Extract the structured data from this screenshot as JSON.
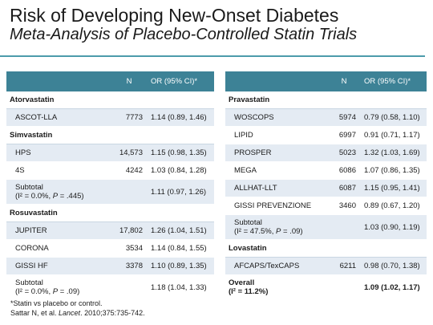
{
  "title": "Risk of Developing New-Onset Diabetes",
  "subtitle": "Meta-Analysis of Placebo-Controlled Statin Trials",
  "header": {
    "n": "N",
    "or": "OR (95% CI)*"
  },
  "left": [
    {
      "kind": "group",
      "label": "Atorvastatin"
    },
    {
      "kind": "trial",
      "name": "ASCOT-LLA",
      "n": "7773",
      "or": "1.14 (0.89, 1.46)",
      "shade": true
    },
    {
      "kind": "group",
      "label": "Simvastatin"
    },
    {
      "kind": "trial",
      "name": "HPS",
      "n": "14,573",
      "or": "1.15 (0.98, 1.35)",
      "shade": true
    },
    {
      "kind": "trial",
      "name": "4S",
      "n": "4242",
      "or": "1.03 (0.84, 1.28)",
      "shade": false
    },
    {
      "kind": "subtotal",
      "line1": "Subtotal",
      "line2": "(I² = 0.0%, P = .445)",
      "or": "1.11 (0.97, 1.26)",
      "shade": true
    },
    {
      "kind": "group",
      "label": "Rosuvastatin"
    },
    {
      "kind": "trial",
      "name": "JUPITER",
      "n": "17,802",
      "or": "1.26 (1.04, 1.51)",
      "shade": true
    },
    {
      "kind": "trial",
      "name": "CORONA",
      "n": "3534",
      "or": "1.14 (0.84, 1.55)",
      "shade": false
    },
    {
      "kind": "trial",
      "name": "GISSI HF",
      "n": "3378",
      "or": "1.10 (0.89, 1.35)",
      "shade": true
    },
    {
      "kind": "subtotal",
      "line1": "Subtotal",
      "line2": "(I² = 0.0%, P = .09)",
      "or": "1.18 (1.04, 1.33)",
      "shade": false
    }
  ],
  "right": [
    {
      "kind": "group",
      "label": "Pravastatin"
    },
    {
      "kind": "trial",
      "name": "WOSCOPS",
      "n": "5974",
      "or": "0.79 (0.58, 1.10)",
      "shade": true
    },
    {
      "kind": "trial",
      "name": "LIPID",
      "n": "6997",
      "or": "0.91 (0.71, 1.17)",
      "shade": false
    },
    {
      "kind": "trial",
      "name": "PROSPER",
      "n": "5023",
      "or": "1.32 (1.03, 1.69)",
      "shade": true
    },
    {
      "kind": "trial",
      "name": "MEGA",
      "n": "6086",
      "or": "1.07 (0.86, 1.35)",
      "shade": false
    },
    {
      "kind": "trial",
      "name": "ALLHAT-LLT",
      "n": "6087",
      "or": "1.15 (0.95, 1.41)",
      "shade": true
    },
    {
      "kind": "trial",
      "name": "GISSI PREVENZIONE",
      "n": "3460",
      "or": "0.89 (0.67, 1.20)",
      "shade": false
    },
    {
      "kind": "subtotal",
      "line1": "Subtotal",
      "line2": "(I² = 47.5%, P = .09)",
      "or": "1.03 (0.90, 1.19)",
      "shade": true
    },
    {
      "kind": "group",
      "label": "Lovastatin"
    },
    {
      "kind": "trial",
      "name": "AFCAPS/TexCAPS",
      "n": "6211",
      "or": "0.98 (0.70, 1.38)",
      "shade": true
    },
    {
      "kind": "overall",
      "line1": "Overall",
      "line2": "(I² = 11.2%)",
      "or": "1.09 (1.02, 1.17)",
      "shade": false
    }
  ],
  "footnote": {
    "line1": "*Statin vs placebo or control.",
    "citation_authors": "Sattar N, et al. ",
    "citation_journal": "Lancet",
    "citation_rest": ". 2010;375:735-742."
  }
}
